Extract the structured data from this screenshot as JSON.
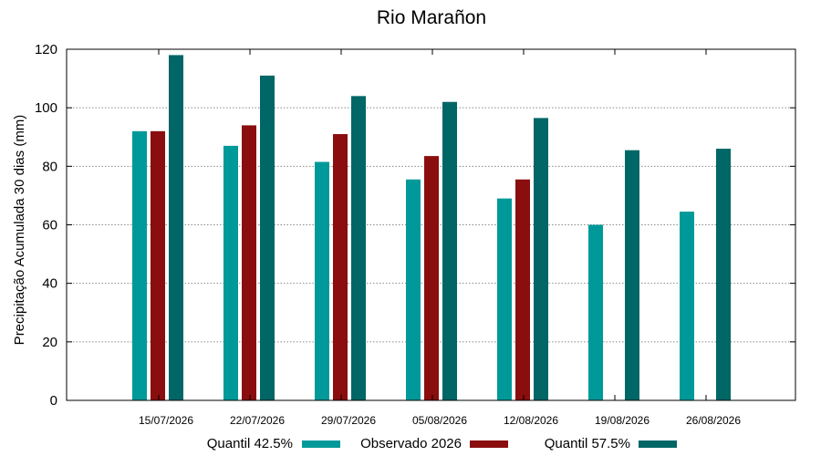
{
  "chart_data": {
    "type": "bar",
    "title": "Rio Marañon",
    "xlabel": "",
    "ylabel": "Precipitação Acumulada 30 dias (mm)",
    "ylim": [
      0,
      120
    ],
    "yticks": [
      0,
      20,
      40,
      60,
      80,
      100,
      120
    ],
    "grid": true,
    "legend_position": "bottom",
    "categories": [
      "15/07/2026",
      "22/07/2026",
      "29/07/2026",
      "05/08/2026",
      "12/08/2026",
      "19/08/2026",
      "26/08/2026"
    ],
    "series": [
      {
        "name": "Quantil 42.5%",
        "color": "#009999",
        "values": [
          92,
          87,
          81.5,
          75.5,
          69,
          60,
          64.5
        ]
      },
      {
        "name": "Observado 2026",
        "color": "#8b0e0e",
        "values": [
          92,
          94,
          91,
          83.5,
          75.5,
          null,
          null
        ]
      },
      {
        "name": "Quantil 57.5%",
        "color": "#006666",
        "values": [
          118,
          111,
          104,
          102,
          96.5,
          85.5,
          86
        ]
      }
    ]
  }
}
